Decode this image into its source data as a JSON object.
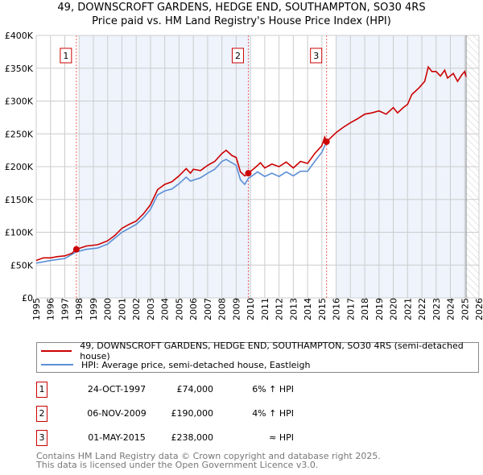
{
  "chart_data": {
    "type": "line",
    "title": "49, DOWNSCROFT GARDENS, HEDGE END, SOUTHAMPTON, SO30 4RS",
    "subtitle": "Price paid vs. HM Land Registry's House Price Index (HPI)",
    "xlim": [
      1995,
      2026
    ],
    "ylim": [
      0,
      400000
    ],
    "x_ticks": [
      "1995",
      "1996",
      "1997",
      "1998",
      "1999",
      "2000",
      "2001",
      "2002",
      "2003",
      "2004",
      "2005",
      "2006",
      "2007",
      "2008",
      "2009",
      "2010",
      "2011",
      "2012",
      "2013",
      "2014",
      "2015",
      "2016",
      "2017",
      "2018",
      "2019",
      "2020",
      "2021",
      "2022",
      "2023",
      "2024",
      "2025",
      "2026"
    ],
    "y_ticks": [
      {
        "v": 0,
        "label": "£0"
      },
      {
        "v": 50000,
        "label": "£50K"
      },
      {
        "v": 100000,
        "label": "£100K"
      },
      {
        "v": 150000,
        "label": "£150K"
      },
      {
        "v": 200000,
        "label": "£200K"
      },
      {
        "v": 250000,
        "label": "£250K"
      },
      {
        "v": 300000,
        "label": "£300K"
      },
      {
        "v": 350000,
        "label": "£350K"
      },
      {
        "v": 400000,
        "label": "£400K"
      }
    ],
    "grid": true,
    "shaded_ranges": [
      [
        1998,
        2010
      ],
      [
        2016,
        2025.1
      ]
    ],
    "forecast_hatch_from": 2025.1,
    "series": [
      {
        "name": "49, DOWNSCROFT GARDENS, HEDGE END, SOUTHAMPTON, SO30 4RS (semi-detached house)",
        "color": "#cc0000",
        "x": [
          1995,
          1995.5,
          1996,
          1996.5,
          1997,
          1997.5,
          1997.8,
          1998.5,
          1999.3,
          2000,
          2000.5,
          2001,
          2001.5,
          2002,
          2002.5,
          2003,
          2003.5,
          2004,
          2004.5,
          2005,
          2005.5,
          2005.8,
          2006,
          2006.5,
          2007,
          2007.5,
          2008,
          2008.3,
          2008.7,
          2009,
          2009.3,
          2009.6,
          2009.85,
          2010.3,
          2010.7,
          2011,
          2011.5,
          2012,
          2012.5,
          2013,
          2013.5,
          2014,
          2014.5,
          2015,
          2015.2,
          2015.33,
          2016,
          2016.5,
          2017,
          2017.5,
          2018,
          2018.5,
          2019,
          2019.5,
          2020,
          2020.3,
          2020.7,
          2021,
          2021.3,
          2021.8,
          2022.2,
          2022.45,
          2022.7,
          2023,
          2023.3,
          2023.6,
          2023.8,
          2024.2,
          2024.5,
          2024.8,
          2025,
          2025.1
        ],
        "y": [
          57000,
          61000,
          61000,
          63000,
          64000,
          68000,
          74000,
          79000,
          81000,
          87000,
          95000,
          106000,
          112000,
          117000,
          128000,
          142000,
          165000,
          173000,
          177000,
          186000,
          197000,
          190000,
          196000,
          194000,
          202000,
          208000,
          220000,
          225000,
          217000,
          214000,
          192000,
          186000,
          190000,
          198000,
          206000,
          198000,
          204000,
          200000,
          207000,
          198000,
          208000,
          205000,
          220000,
          232000,
          245000,
          238000,
          252000,
          260000,
          267000,
          273000,
          280000,
          282000,
          285000,
          280000,
          290000,
          282000,
          290000,
          295000,
          310000,
          320000,
          330000,
          352000,
          345000,
          345000,
          338000,
          347000,
          335000,
          342000,
          330000,
          340000,
          345000,
          337000
        ]
      },
      {
        "name": "HPI: Average price, semi-detached house, Eastleigh",
        "color": "#5b8fd6",
        "x": [
          1995,
          1996,
          1997,
          1997.8,
          1998.5,
          1999.3,
          2000,
          2001,
          2002,
          2002.5,
          2003,
          2003.5,
          2004,
          2004.5,
          2005,
          2005.5,
          2005.8,
          2006.5,
          2007,
          2007.5,
          2008,
          2008.3,
          2009,
          2009.3,
          2009.6,
          2009.85,
          2010.5,
          2011,
          2011.5,
          2012,
          2012.5,
          2013,
          2013.5,
          2014,
          2014.5,
          2015,
          2015.33
        ],
        "y": [
          53000,
          57000,
          60000,
          70000,
          74000,
          76000,
          82000,
          100000,
          112000,
          122000,
          135000,
          157000,
          163000,
          166000,
          174000,
          184000,
          178000,
          183000,
          190000,
          196000,
          208000,
          211000,
          202000,
          180000,
          173000,
          182000,
          192000,
          185000,
          190000,
          185000,
          192000,
          186000,
          193000,
          193000,
          208000,
          222000,
          238000
        ]
      }
    ],
    "sales": [
      {
        "n": "1",
        "x": 1997.81,
        "y": 74000,
        "date": "24-OCT-1997",
        "price": "£74,000",
        "hpi": "6% ↑ HPI"
      },
      {
        "n": "2",
        "x": 2009.85,
        "y": 190000,
        "date": "06-NOV-2009",
        "price": "£190,000",
        "hpi": "4% ↑ HPI"
      },
      {
        "n": "3",
        "x": 2015.33,
        "y": 238000,
        "date": "01-MAY-2015",
        "price": "£238,000",
        "hpi": "≈ HPI"
      }
    ]
  },
  "footer": {
    "line1": "Contains HM Land Registry data © Crown copyright and database right 2025.",
    "line2": "This data is licensed under the Open Government Licence v3.0."
  }
}
